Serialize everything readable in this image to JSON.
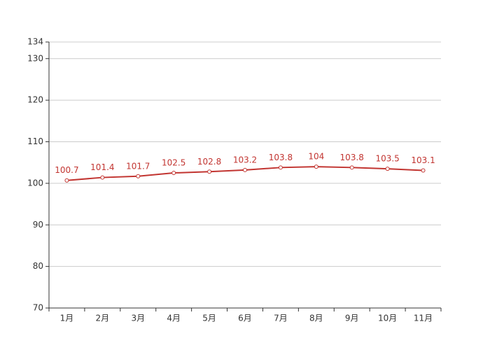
{
  "chart_data": {
    "type": "line",
    "categories": [
      "1月",
      "2月",
      "3月",
      "4月",
      "5月",
      "6月",
      "7月",
      "8月",
      "9月",
      "10月",
      "11月"
    ],
    "values": [
      100.7,
      101.4,
      101.7,
      102.5,
      102.8,
      103.2,
      103.8,
      104,
      103.8,
      103.5,
      103.1
    ],
    "color": "#c23531",
    "ylim": [
      70,
      134
    ],
    "yticks": [
      70,
      80,
      90,
      100,
      110,
      120,
      130,
      134
    ],
    "grid": true
  }
}
